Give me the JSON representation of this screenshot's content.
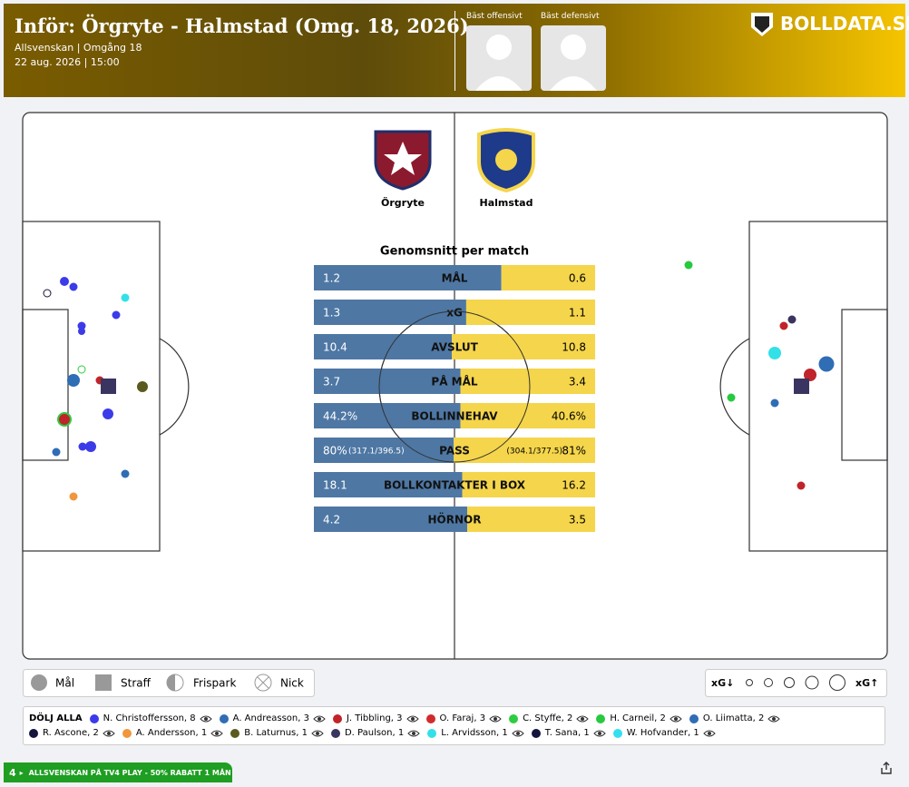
{
  "header": {
    "title": "Inför: Örgryte - Halmstad (Omg. 18, 2026)",
    "subtitle": "Allsvenskan | Omgång 18",
    "datetime": "22 aug. 2026 | 15:00",
    "best_offensive": "Bäst offensivt",
    "best_defensive": "Bäst defensivt",
    "brand": "BOLLDATA.SE"
  },
  "teams": {
    "home": "Örgryte",
    "away": "Halmstad",
    "home_color": "#4e77a4",
    "away_color": "#f5d54b"
  },
  "stats": {
    "title": "Genomsnitt per match",
    "rows": [
      {
        "label": "MÅL",
        "home": "1.2",
        "away": "0.6"
      },
      {
        "label": "xG",
        "home": "1.3",
        "away": "1.1"
      },
      {
        "label": "AVSLUT",
        "home": "10.4",
        "away": "10.8"
      },
      {
        "label": "PÅ MÅL",
        "home": "3.7",
        "away": "3.4"
      },
      {
        "label": "BOLLINNEHAV",
        "home": "44.2%",
        "away": "40.6%"
      },
      {
        "label": "PASS",
        "home": "80%",
        "home_detail": "(317.1/396.5)",
        "away_detail": "(304.1/377.5)",
        "away": "81%"
      },
      {
        "label": "BOLLKONTAKTER I BOX",
        "home": "18.1",
        "away": "16.2"
      },
      {
        "label": "HÖRNOR",
        "home": "4.2",
        "away": "3.5"
      }
    ]
  },
  "legend": {
    "goal": "Mål",
    "penalty": "Straff",
    "freekick": "Frispark",
    "header": "Nick",
    "xg_low": "xG↓",
    "xg_high": "xG↑"
  },
  "players": {
    "hide_all": "DÖLJ ALLA",
    "items": [
      {
        "name": "N. Christoffersson, 8",
        "color": "#3b3be8"
      },
      {
        "name": "A. Andreasson, 3",
        "color": "#2f6db5"
      },
      {
        "name": "J. Tibbling, 3",
        "color": "#c0242a"
      },
      {
        "name": "O. Faraj, 3",
        "color": "#d12b2b"
      },
      {
        "name": "C. Styffe, 2",
        "color": "#2ecc40"
      },
      {
        "name": "H. Carneil, 2",
        "color": "#27c93f"
      },
      {
        "name": "O. Liimatta, 2",
        "color": "#2f6db5"
      },
      {
        "name": "R. Ascone, 2",
        "color": "#14143c"
      },
      {
        "name": "A. Andersson, 1",
        "color": "#f0963c"
      },
      {
        "name": "B. Laturnus, 1",
        "color": "#5a5a1e"
      },
      {
        "name": "D. Paulson, 1",
        "color": "#3a3560"
      },
      {
        "name": "L. Arvidsson, 1",
        "color": "#33e0e8"
      },
      {
        "name": "T. Sana, 1",
        "color": "#14143c"
      },
      {
        "name": "W. Hofvander, 1",
        "color": "#33e0f0"
      }
    ]
  },
  "banner": {
    "badge": "4",
    "text": "ALLSVENSKAN PÅ TV4 PLAY - 50% RABATT 1 MÅN"
  }
}
